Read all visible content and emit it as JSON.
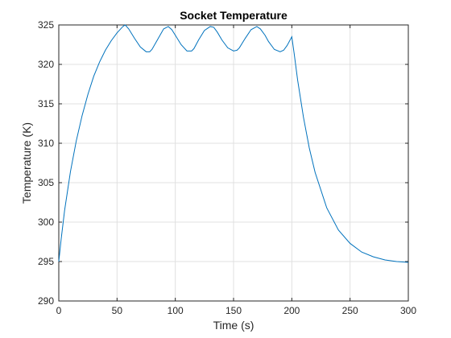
{
  "chart_data": {
    "type": "line",
    "title": "Socket Temperature",
    "xlabel": "Time (s)",
    "ylabel": "Temperature (K)",
    "xlim": [
      0,
      300
    ],
    "ylim": [
      290,
      325
    ],
    "xticks": [
      0,
      50,
      100,
      150,
      200,
      250,
      300
    ],
    "yticks": [
      290,
      295,
      300,
      305,
      310,
      315,
      320,
      325
    ],
    "grid": true,
    "colors": {
      "line": "#0072BD",
      "grid": "#e0e0e0",
      "axis": "#262626"
    },
    "series": [
      {
        "x": [
          0,
          2,
          5,
          10,
          15,
          20,
          25,
          30,
          35,
          40,
          45,
          50,
          55,
          57,
          60,
          65,
          70,
          75,
          78,
          80,
          85,
          90,
          94,
          97,
          100,
          105,
          110,
          114,
          116,
          120,
          125,
          130,
          133,
          136,
          140,
          145,
          150,
          153,
          155,
          160,
          165,
          170,
          173,
          177,
          180,
          185,
          190,
          193,
          196,
          200,
          202,
          205,
          210,
          215,
          220,
          230,
          240,
          250,
          260,
          270,
          280,
          290,
          300
        ],
        "y": [
          295.0,
          297.8,
          301.5,
          306.4,
          310.3,
          313.5,
          316.2,
          318.5,
          320.3,
          321.8,
          323.0,
          324.0,
          324.8,
          325.0,
          324.5,
          323.3,
          322.2,
          321.6,
          321.6,
          321.9,
          323.2,
          324.5,
          324.8,
          324.4,
          323.7,
          322.5,
          321.7,
          321.7,
          322.0,
          323.1,
          324.3,
          324.8,
          324.7,
          324.1,
          323.1,
          322.1,
          321.7,
          321.8,
          322.1,
          323.3,
          324.4,
          324.8,
          324.5,
          323.7,
          322.9,
          321.9,
          321.6,
          321.8,
          322.4,
          323.5,
          321.4,
          318.0,
          313.3,
          309.4,
          306.3,
          301.8,
          299.0,
          297.3,
          296.2,
          295.6,
          295.2,
          295.0,
          294.9
        ]
      }
    ]
  }
}
